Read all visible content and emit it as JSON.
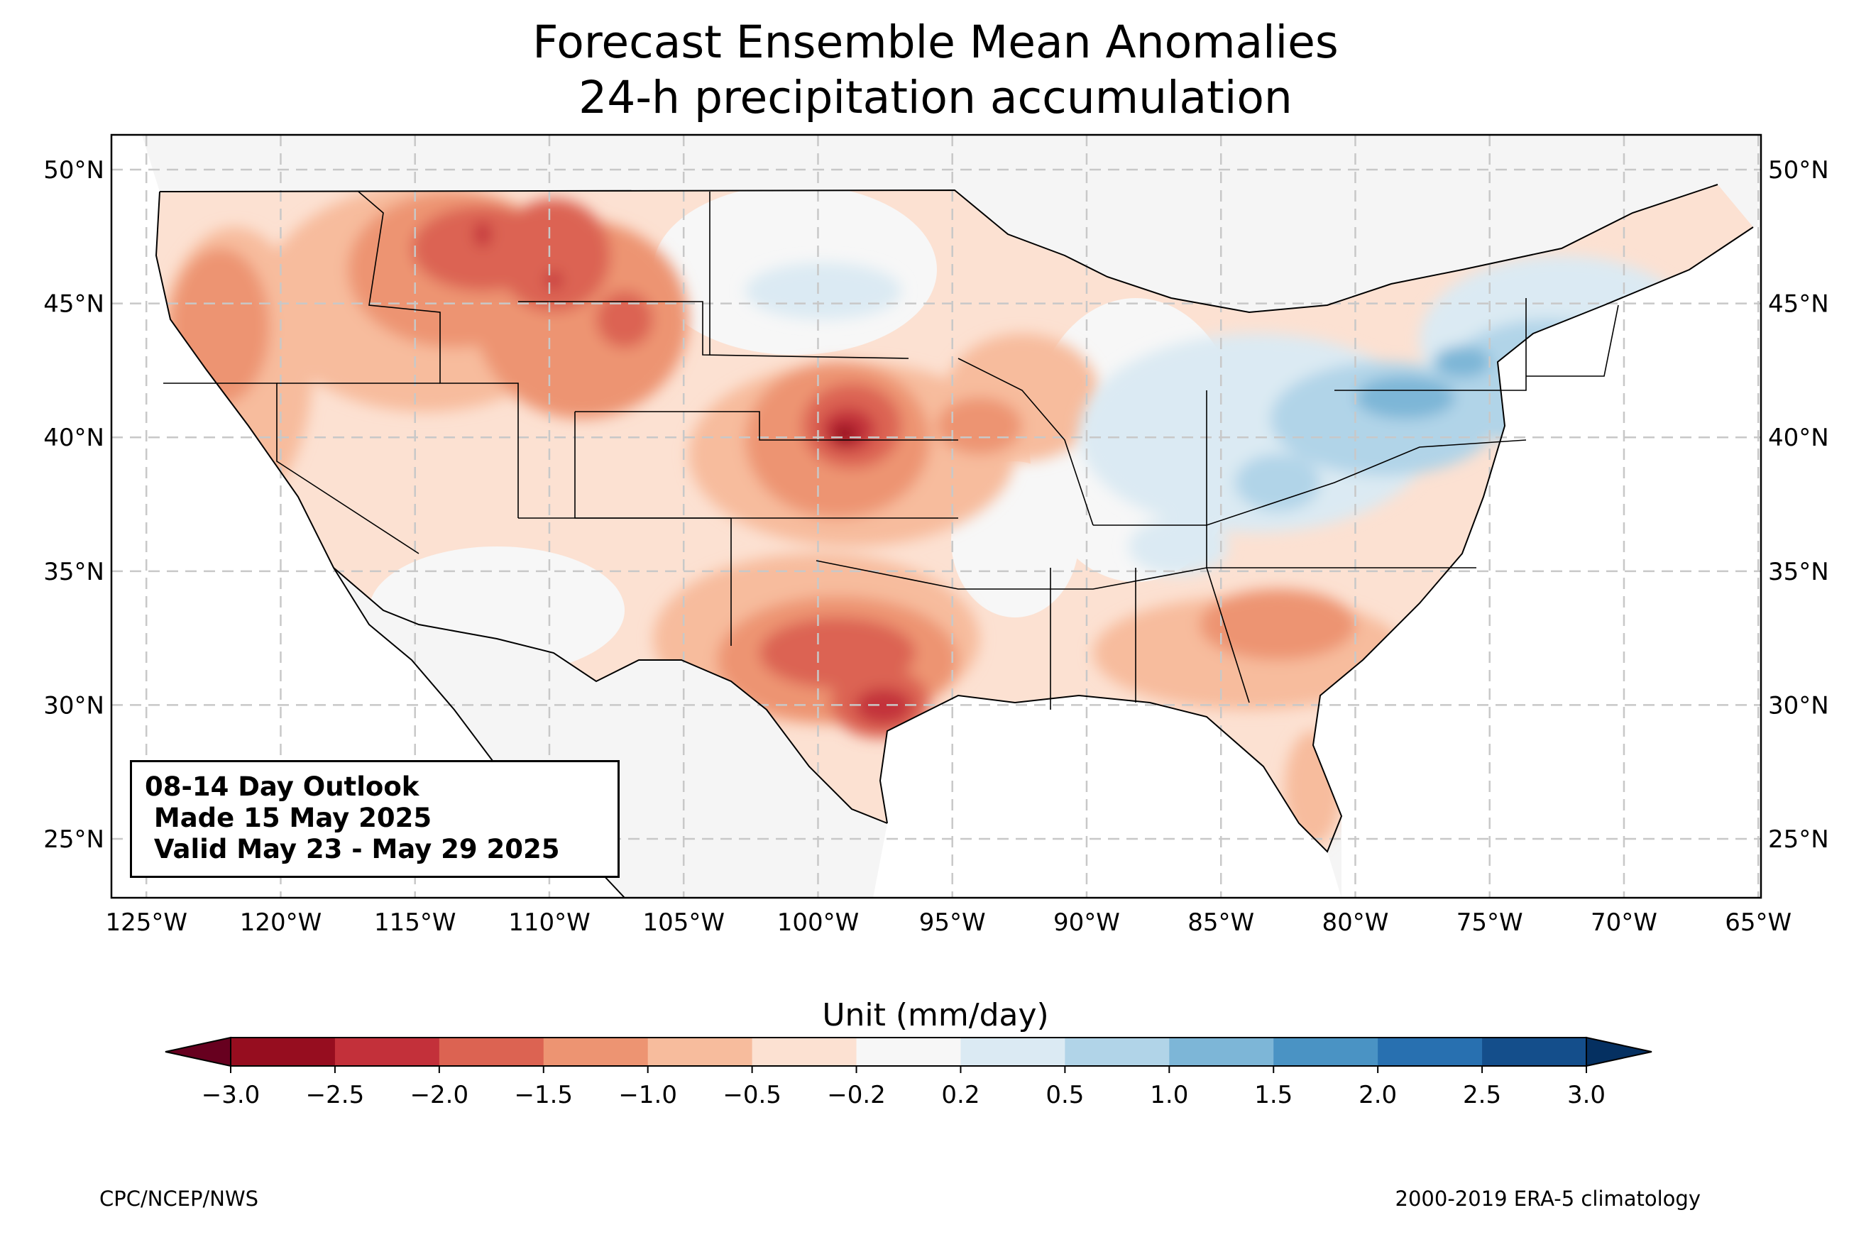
{
  "title_line1": "Forecast Ensemble Mean Anomalies",
  "title_line2": "24-h precipitation accumulation",
  "info_box": {
    "line1": "08-14 Day Outlook",
    "line2": " Made 15 May 2025",
    "line3": " Valid May 23 - May 29 2025"
  },
  "map": {
    "lon_range": [
      -126.3,
      -64.9
    ],
    "lat_range": [
      22.8,
      51.3
    ],
    "lon_ticks": [
      "125°W",
      "120°W",
      "115°W",
      "110°W",
      "105°W",
      "100°W",
      "95°W",
      "90°W",
      "85°W",
      "80°W",
      "75°W",
      "70°W",
      "65°W"
    ],
    "lat_ticks": [
      "25°N",
      "30°N",
      "35°N",
      "40°N",
      "45°N",
      "50°N"
    ],
    "gridlines": true,
    "background_color": "#f5f5f5"
  },
  "colorbar": {
    "title": "Unit (mm/day)",
    "ticks": [
      "−3.0",
      "−2.5",
      "−2.0",
      "−1.5",
      "−1.0",
      "−0.5",
      "−0.2",
      "0.2",
      "0.5",
      "1.0",
      "1.5",
      "2.0",
      "2.5",
      "3.0"
    ],
    "colors": [
      "#960d1f",
      "#c3303a",
      "#dc6352",
      "#ed9472",
      "#f7bc9d",
      "#fce1d2",
      "#f7f7f7",
      "#dbeaf3",
      "#b1d4e8",
      "#7db6d7",
      "#4a93c4",
      "#2870b0",
      "#144e8b"
    ],
    "extend_low_color": "#67001f",
    "extend_high_color": "#053061"
  },
  "footer_left": "CPC/NCEP/NWS",
  "footer_right": "2000-2019 ERA-5 climatology"
}
